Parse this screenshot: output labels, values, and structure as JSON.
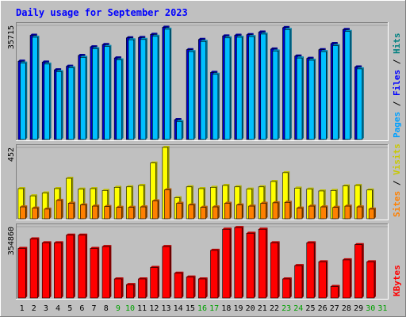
{
  "chart_data": {
    "type": "bar",
    "title": "Daily usage for September 2023",
    "categories": [
      "1",
      "2",
      "3",
      "4",
      "5",
      "6",
      "7",
      "8",
      "9",
      "10",
      "11",
      "12",
      "13",
      "14",
      "15",
      "16",
      "17",
      "18",
      "19",
      "20",
      "21",
      "22",
      "23",
      "24",
      "25",
      "26",
      "27",
      "28",
      "29",
      "30",
      "31"
    ],
    "weekend_days": [
      "9",
      "10",
      "16",
      "17",
      "23",
      "24",
      "30",
      "31"
    ],
    "panels": [
      {
        "id": "hits",
        "ymax_label": "35715",
        "ymax": 35715,
        "axis_labels": [
          {
            "text": "Hits",
            "color": "#008080"
          },
          {
            "text": "Files",
            "color": "#0000ff"
          },
          {
            "text": "Pages",
            "color": "#00a0ff"
          }
        ],
        "series": [
          {
            "name": "Hits",
            "color": "#0000cc",
            "values": [
              24500,
              32600,
              24200,
              21800,
              22900,
              26300,
              29000,
              29700,
              25500,
              31800,
              31900,
              32900,
              35100,
              6200,
              28100,
              31300,
              21000,
              32400,
              32600,
              32800,
              33600,
              28300,
              35000,
              26100,
              25400,
              28100,
              30000,
              34400,
              22700,
              null,
              null
            ]
          },
          {
            "name": "Files",
            "color": "#00c0ff",
            "values": [
              23900,
              32000,
              23600,
              21200,
              22400,
              25700,
              28400,
              29100,
              24900,
              31200,
              31300,
              32300,
              34500,
              5600,
              27500,
              30700,
              20400,
              31800,
              32000,
              32200,
              33000,
              27700,
              34400,
              25500,
              24800,
              27500,
              29400,
              33800,
              22100,
              null,
              null
            ]
          }
        ]
      },
      {
        "id": "visits",
        "ymax_label": "452",
        "ymax": 452,
        "axis_labels": [
          {
            "text": "Visits",
            "color": "#c8c800"
          },
          {
            "text": "Sites",
            "color": "#ff8000"
          }
        ],
        "series": [
          {
            "name": "Visits",
            "color": "#ffff00",
            "values": [
              191,
              145,
              163,
              191,
              256,
              188,
              191,
              179,
              199,
              202,
              211,
              353,
              452,
              133,
              202,
              191,
              199,
              211,
              202,
              188,
              202,
              236,
              292,
              194,
              188,
              176,
              179,
              208,
              211,
              182,
              null
            ]
          },
          {
            "name": "Sites",
            "color": "#ff8000",
            "values": [
              75,
              67,
              61,
              116,
              98,
              87,
              80,
              77,
              72,
              72,
              75,
              113,
              183,
              98,
              87,
              72,
              75,
              98,
              87,
              80,
              98,
              101,
              104,
              67,
              80,
              75,
              72,
              80,
              75,
              61,
              null
            ]
          }
        ]
      },
      {
        "id": "kbytes",
        "ymax_label": "354860",
        "ymax": 354860,
        "axis_labels": [
          {
            "text": "KBytes",
            "color": "#ff0000"
          }
        ],
        "series": [
          {
            "name": "KBytes",
            "color": "#ff0000",
            "values": [
              246500,
              293800,
              274700,
              274700,
              312600,
              312600,
              246500,
              255900,
              94800,
              66400,
              94800,
              151700,
              255900,
              123200,
              104200,
              94800,
              236900,
              341900,
              350400,
              322000,
              341900,
              274700,
              94800,
              161100,
              274700,
              180000,
              57000,
              189600,
              265300,
              180000,
              null
            ]
          }
        ]
      }
    ]
  }
}
